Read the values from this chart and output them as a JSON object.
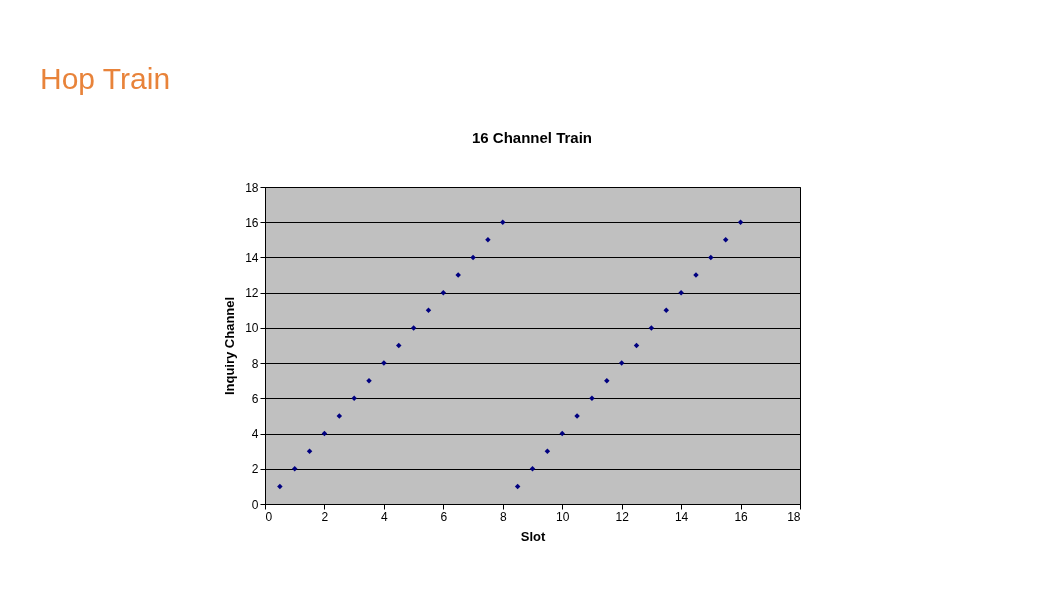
{
  "chart_data": {
    "type": "scatter",
    "title": "16 Channel Train",
    "xlabel": "Slot",
    "ylabel": "Inquiry Channel",
    "annotations": [
      "Hop Train"
    ],
    "x": [
      0.5,
      1,
      1.5,
      2,
      2.5,
      3,
      3.5,
      4,
      4.5,
      5,
      5.5,
      6,
      6.5,
      7,
      7.5,
      8,
      8.5,
      9,
      9.5,
      10,
      10.5,
      11,
      11.5,
      12,
      12.5,
      13,
      13.5,
      14,
      14.5,
      15,
      15.5,
      16
    ],
    "values": [
      1,
      2,
      3,
      4,
      5,
      6,
      7,
      8,
      9,
      10,
      11,
      12,
      13,
      14,
      15,
      16,
      1,
      2,
      3,
      4,
      5,
      6,
      7,
      8,
      9,
      10,
      11,
      12,
      13,
      14,
      15,
      16
    ],
    "color": "#000080",
    "marker": "diamond",
    "grid": "y",
    "xlim": [
      0,
      18
    ],
    "xticks": [
      0,
      2,
      4,
      6,
      8,
      10,
      12,
      14,
      16,
      18
    ],
    "ylim": [
      0,
      18
    ],
    "yticks": [
      0,
      2,
      4,
      6,
      8,
      10,
      12,
      14,
      16,
      18
    ]
  }
}
